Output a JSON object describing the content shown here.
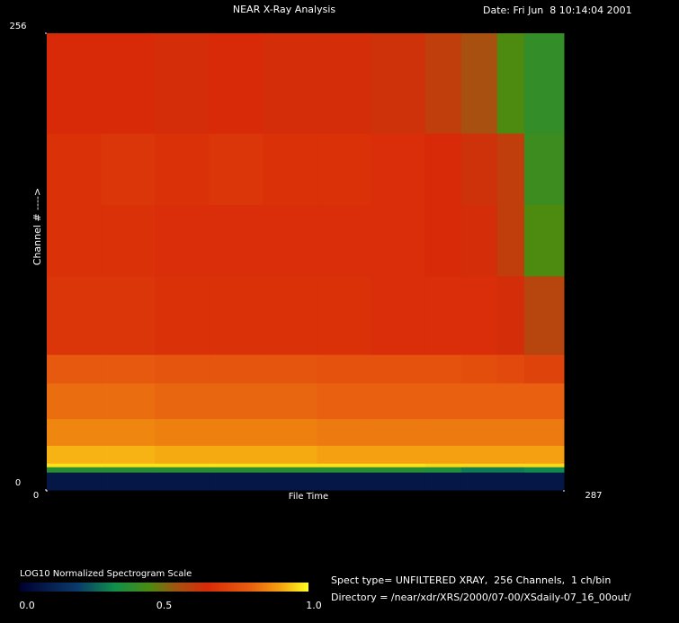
{
  "chart_data": {
    "type": "heatmap",
    "title": "NEAR X-Ray Analysis",
    "date": "Date: Fri Jun  8 10:14:04 2001",
    "ylabel": "Channel # ---->",
    "xlabel": "File Time",
    "xlim": [
      0,
      287
    ],
    "ylim": [
      0,
      256
    ],
    "xticks": [
      0,
      287
    ],
    "yticks": [
      0,
      256
    ],
    "xbins": [
      0,
      30,
      60,
      90,
      120,
      150,
      180,
      210,
      230,
      250,
      265,
      287
    ],
    "ybins": [
      0,
      10,
      13,
      15,
      25,
      40,
      60,
      76,
      120,
      160,
      200,
      256
    ],
    "values": [
      [
        0.08,
        0.08,
        0.08,
        0.08,
        0.08,
        0.08,
        0.08,
        0.08,
        0.08,
        0.08,
        0.08
      ],
      [
        0.38,
        0.38,
        0.38,
        0.38,
        0.38,
        0.38,
        0.38,
        0.36,
        0.3,
        0.3,
        0.32
      ],
      [
        0.97,
        0.97,
        0.97,
        0.97,
        0.97,
        0.97,
        0.97,
        0.96,
        0.96,
        0.96,
        0.96
      ],
      [
        0.92,
        0.92,
        0.91,
        0.91,
        0.91,
        0.9,
        0.9,
        0.9,
        0.9,
        0.9,
        0.9
      ],
      [
        0.86,
        0.86,
        0.85,
        0.85,
        0.85,
        0.84,
        0.84,
        0.84,
        0.84,
        0.84,
        0.84
      ],
      [
        0.82,
        0.82,
        0.81,
        0.81,
        0.81,
        0.8,
        0.8,
        0.8,
        0.8,
        0.8,
        0.8
      ],
      [
        0.78,
        0.78,
        0.77,
        0.77,
        0.77,
        0.76,
        0.76,
        0.76,
        0.75,
        0.74,
        0.72
      ],
      [
        0.68,
        0.68,
        0.67,
        0.67,
        0.67,
        0.67,
        0.66,
        0.66,
        0.66,
        0.64,
        0.58
      ],
      [
        0.67,
        0.67,
        0.66,
        0.66,
        0.66,
        0.66,
        0.66,
        0.65,
        0.64,
        0.6,
        0.45
      ],
      [
        0.67,
        0.68,
        0.67,
        0.68,
        0.67,
        0.67,
        0.66,
        0.65,
        0.63,
        0.6,
        0.42
      ],
      [
        0.65,
        0.65,
        0.64,
        0.65,
        0.64,
        0.64,
        0.63,
        0.6,
        0.55,
        0.45,
        0.4
      ]
    ],
    "colorbar_title": "LOG10 Normalized Spectrogram Scale",
    "colorbar_ticks": [
      {
        "value": 0,
        "label": "0.0"
      },
      {
        "value": 0.5,
        "label": "0.5"
      },
      {
        "value": 1,
        "label": "1.0"
      }
    ],
    "colorscale": [
      {
        "value": 0,
        "color": "#000030"
      },
      {
        "value": 0.2,
        "color": "#0a3a6a"
      },
      {
        "value": 0.33,
        "color": "#10904a"
      },
      {
        "value": 0.45,
        "color": "#4c8a10"
      },
      {
        "value": 0.55,
        "color": "#a85010"
      },
      {
        "value": 0.65,
        "color": "#d82a08"
      },
      {
        "value": 0.8,
        "color": "#e86010"
      },
      {
        "value": 0.9,
        "color": "#f4a010"
      },
      {
        "value": 1,
        "color": "#ffff20"
      }
    ],
    "info": [
      "Spect type= UNFILTERED XRAY,  256 Channels,  1 ch/bin",
      "Directory = /near/xdr/XRS/2000/07-00/XSdaily-07_16_00out/"
    ]
  }
}
